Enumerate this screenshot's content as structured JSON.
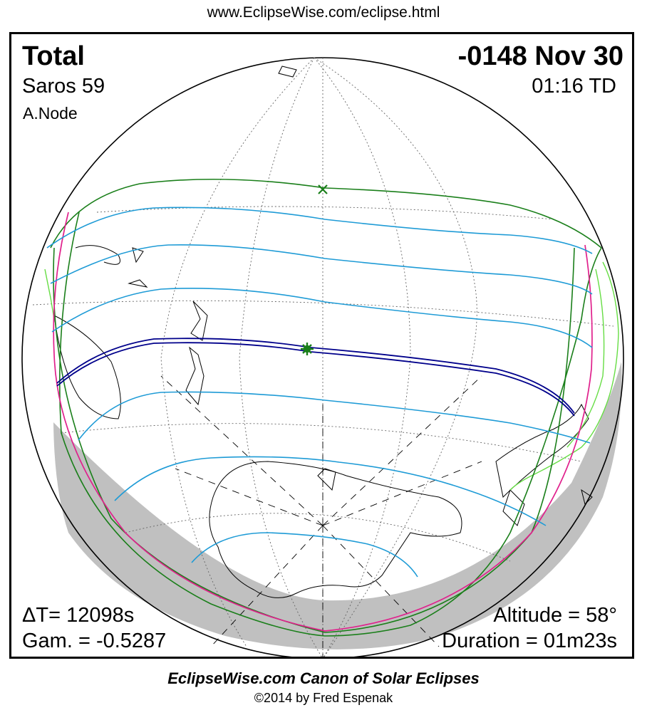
{
  "header": {
    "url": "www.EclipseWise.com/eclipse.html"
  },
  "eclipse": {
    "type": "Total",
    "date": "-0148 Nov 30",
    "saros": "Saros  59",
    "time": "01:16 TD",
    "node": "A.Node",
    "delta_t": "ΔT=  12098s",
    "gamma": "Gam. = -0.5287",
    "altitude": "Altitude = 58°",
    "duration": "Duration = 01m23s"
  },
  "footer": {
    "canon": "EclipseWise.com Canon of Solar Eclipses",
    "copyright": "©2014 by Fred Espenak"
  },
  "colors": {
    "total_path": "#00008b",
    "partial_limits": "#1e9bd6",
    "penumbra_edge": "#1a7f1a",
    "rise_set_curve": "#e0208c",
    "night_side": "#c0c0c0",
    "land_outline_sunrise": "#66dd44"
  },
  "markers": {
    "greatest_eclipse": "star-marker",
    "sub_solar_point": "cross-marker"
  }
}
